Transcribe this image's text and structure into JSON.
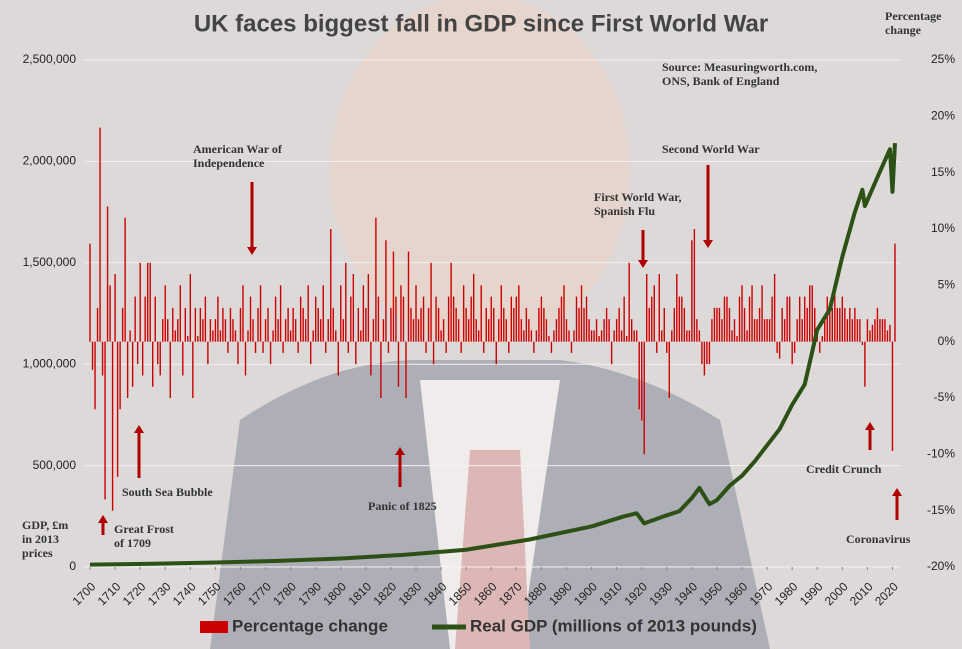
{
  "chart_data": {
    "type": "bar",
    "title": "UK faces biggest fall in GDP since First World War",
    "source": [
      "Source: Measuringworth.com,",
      "ONS, Bank of England"
    ],
    "ylabel": [
      "GDP, £m",
      "in 2013",
      "prices"
    ],
    "y2label": [
      "Percentage",
      "change"
    ],
    "xlim": [
      1698,
      2023
    ],
    "xticks": [
      1700,
      1710,
      1720,
      1730,
      1740,
      1750,
      1760,
      1770,
      1780,
      1790,
      1800,
      1810,
      1820,
      1830,
      1840,
      1850,
      1860,
      1870,
      1880,
      1890,
      1900,
      1910,
      1920,
      1930,
      1940,
      1950,
      1960,
      1970,
      1980,
      1990,
      2000,
      2010,
      2020
    ],
    "ylim": [
      0,
      2500000
    ],
    "yticks": [
      0,
      {
        "value": 500000,
        "label": "500,000"
      },
      {
        "value": 1000000,
        "label": "1,000,000"
      },
      {
        "value": 1500000,
        "label": "1,500,000"
      },
      {
        "value": 2000000,
        "label": "2,000,000"
      },
      {
        "value": 2500000,
        "label": "2,500,000"
      }
    ],
    "y2lim": [
      -20,
      25
    ],
    "y2ticks": [
      {
        "value": -20,
        "label": "-20%"
      },
      {
        "value": -15,
        "label": "-15%"
      },
      {
        "value": -10,
        "label": "-10%"
      },
      {
        "value": -5,
        "label": "-5%"
      },
      {
        "value": 0,
        "label": "0%"
      },
      {
        "value": 5,
        "label": "5%"
      },
      {
        "value": 10,
        "label": "10%"
      },
      {
        "value": 15,
        "label": "15%"
      },
      {
        "value": 20,
        "label": "20%"
      },
      {
        "value": 25,
        "label": "25%"
      }
    ],
    "grid": true,
    "legend": "bottom",
    "annotations": [
      {
        "lines": [
          "American War of",
          "Independence"
        ]
      },
      {
        "lines": [
          "Second World War"
        ]
      },
      {
        "lines": [
          "First World War,",
          "Spanish Flu"
        ]
      },
      {
        "lines": [
          "South Sea Bubble"
        ]
      },
      {
        "lines": [
          "Great Frost",
          "of 1709"
        ]
      },
      {
        "lines": [
          "Panic of 1825"
        ]
      },
      {
        "lines": [
          "Credit Crunch"
        ]
      },
      {
        "lines": [
          "Coronavirus"
        ]
      }
    ],
    "series": [
      {
        "name": "Percentage change",
        "color": "#cc0000",
        "axis": "y2",
        "type": "bar",
        "x": [
          1700,
          1701,
          1702,
          1703,
          1704,
          1705,
          1706,
          1707,
          1708,
          1709,
          1710,
          1711,
          1712,
          1713,
          1714,
          1715,
          1716,
          1717,
          1718,
          1719,
          1720,
          1721,
          1722,
          1723,
          1724,
          1725,
          1726,
          1727,
          1728,
          1729,
          1730,
          1731,
          1732,
          1733,
          1734,
          1735,
          1736,
          1737,
          1738,
          1739,
          1740,
          1741,
          1742,
          1743,
          1744,
          1745,
          1746,
          1747,
          1748,
          1749,
          1750,
          1751,
          1752,
          1753,
          1754,
          1755,
          1756,
          1757,
          1758,
          1759,
          1760,
          1761,
          1762,
          1763,
          1764,
          1765,
          1766,
          1767,
          1768,
          1769,
          1770,
          1771,
          1772,
          1773,
          1774,
          1775,
          1776,
          1777,
          1778,
          1779,
          1780,
          1781,
          1782,
          1783,
          1784,
          1785,
          1786,
          1787,
          1788,
          1789,
          1790,
          1791,
          1792,
          1793,
          1794,
          1795,
          1796,
          1797,
          1798,
          1799,
          1800,
          1801,
          1802,
          1803,
          1804,
          1805,
          1806,
          1807,
          1808,
          1809,
          1810,
          1811,
          1812,
          1813,
          1814,
          1815,
          1816,
          1817,
          1818,
          1819,
          1820,
          1821,
          1822,
          1823,
          1824,
          1825,
          1826,
          1827,
          1828,
          1829,
          1830,
          1831,
          1832,
          1833,
          1834,
          1835,
          1836,
          1837,
          1838,
          1839,
          1840,
          1841,
          1842,
          1843,
          1844,
          1845,
          1846,
          1847,
          1848,
          1849,
          1850,
          1851,
          1852,
          1853,
          1854,
          1855,
          1856,
          1857,
          1858,
          1859,
          1860,
          1861,
          1862,
          1863,
          1864,
          1865,
          1866,
          1867,
          1868,
          1869,
          1870,
          1871,
          1872,
          1873,
          1874,
          1875,
          1876,
          1877,
          1878,
          1879,
          1880,
          1881,
          1882,
          1883,
          1884,
          1885,
          1886,
          1887,
          1888,
          1889,
          1890,
          1891,
          1892,
          1893,
          1894,
          1895,
          1896,
          1897,
          1898,
          1899,
          1900,
          1901,
          1902,
          1903,
          1904,
          1905,
          1906,
          1907,
          1908,
          1909,
          1910,
          1911,
          1912,
          1913,
          1914,
          1915,
          1916,
          1917,
          1918,
          1919,
          1920,
          1921,
          1922,
          1923,
          1924,
          1925,
          1926,
          1927,
          1928,
          1929,
          1930,
          1931,
          1932,
          1933,
          1934,
          1935,
          1936,
          1937,
          1938,
          1939,
          1940,
          1941,
          1942,
          1943,
          1944,
          1945,
          1946,
          1947,
          1948,
          1949,
          1950,
          1951,
          1952,
          1953,
          1954,
          1955,
          1956,
          1957,
          1958,
          1959,
          1960,
          1961,
          1962,
          1963,
          1964,
          1965,
          1966,
          1967,
          1968,
          1969,
          1970,
          1971,
          1972,
          1973,
          1974,
          1975,
          1976,
          1977,
          1978,
          1979,
          1980,
          1981,
          1982,
          1983,
          1984,
          1985,
          1986,
          1987,
          1988,
          1989,
          1990,
          1991,
          1992,
          1993,
          1994,
          1995,
          1996,
          1997,
          1998,
          1999,
          2000,
          2001,
          2002,
          2003,
          2004,
          2005,
          2006,
          2007,
          2008,
          2009,
          2010,
          2011,
          2012,
          2013,
          2014,
          2015,
          2016,
          2017,
          2018,
          2019,
          2020,
          2021
        ],
        "values": [
          8.7,
          -2.5,
          -6,
          3,
          19,
          -3,
          -14,
          12,
          5,
          -15,
          6,
          -12,
          -6,
          3,
          11,
          -5,
          1,
          -4,
          4,
          -2,
          7,
          -3,
          4,
          7,
          7,
          -4,
          4,
          -2,
          -3,
          2,
          5,
          2,
          -5,
          3,
          1,
          2,
          5,
          -3,
          3,
          0.5,
          6,
          -5,
          3,
          0.5,
          3,
          2,
          4,
          -2,
          2,
          1,
          2,
          4,
          1,
          3,
          2,
          -1,
          3,
          2,
          1,
          -2,
          3,
          5,
          -3,
          1,
          4,
          2,
          -1,
          3,
          5,
          -1,
          2,
          3,
          -2,
          1,
          4,
          2,
          5,
          -1,
          2,
          3,
          1,
          3,
          2,
          -1,
          4,
          3,
          2,
          5,
          -2,
          1,
          4,
          3,
          2,
          5,
          -1,
          2,
          10,
          3,
          1,
          -3,
          5,
          2,
          7,
          -1,
          4,
          6,
          -2,
          3,
          1,
          5,
          3,
          6,
          -3,
          2,
          11,
          4,
          -5,
          2,
          9,
          -1,
          3,
          8,
          4,
          -4,
          5,
          4,
          -5,
          8,
          3,
          2,
          5,
          2,
          3,
          4,
          -1,
          3,
          7,
          -2,
          4,
          3,
          1,
          2,
          -1,
          4,
          7,
          4,
          3,
          2,
          -1,
          5,
          3,
          2,
          4,
          6,
          2,
          1,
          5,
          -1,
          3,
          2,
          4,
          3,
          -2,
          2,
          5,
          3,
          2,
          -1,
          4,
          3,
          4,
          5,
          2,
          1,
          3,
          2,
          1,
          -1,
          1,
          3,
          4,
          3,
          2,
          0.5,
          -1,
          1,
          2,
          3,
          4,
          5,
          2,
          1,
          -1,
          1,
          4,
          3,
          5,
          3,
          4,
          2,
          1,
          1,
          2,
          0.5,
          1,
          2,
          3,
          2,
          -2,
          1,
          2,
          3,
          1,
          4,
          0.5,
          7,
          2,
          1,
          1,
          -6,
          -7,
          -10,
          6,
          3,
          4,
          5,
          -1,
          6,
          1,
          3,
          -1,
          -5,
          1,
          3,
          6,
          4,
          4,
          3,
          1,
          1,
          9,
          10,
          2,
          1,
          -2,
          -3,
          -2,
          -2,
          2,
          3,
          3,
          3,
          2,
          4,
          4,
          3,
          1,
          2,
          0.5,
          4,
          5,
          3,
          1,
          4,
          5,
          2,
          2,
          3,
          5,
          2,
          2,
          2,
          4,
          6,
          -1,
          -1.5,
          3,
          2,
          4,
          4,
          -2,
          -1,
          2,
          4,
          2,
          4,
          3,
          5,
          5,
          3,
          1,
          -1,
          0.5,
          2,
          4,
          3,
          3,
          5,
          3,
          3,
          4,
          3,
          2,
          3,
          2,
          3,
          2,
          2,
          -0.3,
          -4,
          2,
          1,
          1.5,
          2,
          3,
          2,
          2,
          2,
          1,
          1.5,
          -9.7,
          8.7
        ]
      },
      {
        "name": "Real GDP (millions of 2013 pounds)",
        "color": "#2d5016",
        "type": "line",
        "x": [
          1700,
          1725,
          1750,
          1775,
          1800,
          1825,
          1850,
          1875,
          1900,
          1913,
          1918,
          1921,
          1930,
          1935,
          1940,
          1943,
          1947,
          1950,
          1955,
          1960,
          1965,
          1970,
          1975,
          1980,
          1985,
          1990,
          1995,
          2000,
          2005,
          2008,
          2009,
          2015,
          2019,
          2020,
          2021
        ],
        "values": [
          12000,
          16000,
          22000,
          30000,
          42000,
          60000,
          85000,
          135000,
          200000,
          250000,
          265000,
          215000,
          255000,
          275000,
          340000,
          390000,
          310000,
          330000,
          400000,
          450000,
          520000,
          600000,
          680000,
          800000,
          900000,
          1170000,
          1270000,
          1530000,
          1750000,
          1860000,
          1780000,
          1950000,
          2060000,
          1850000,
          2090000
        ]
      }
    ]
  }
}
